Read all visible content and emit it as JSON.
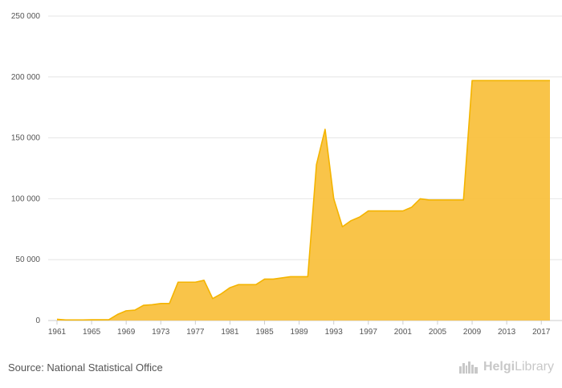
{
  "chart_data": {
    "type": "area",
    "title": "",
    "xlabel": "",
    "ylabel": "",
    "xlim": [
      1961,
      2018
    ],
    "ylim": [
      0,
      250000
    ],
    "y_ticks": [
      0,
      50000,
      100000,
      150000,
      200000,
      250000
    ],
    "y_tick_labels": [
      "0",
      "50 000",
      "100 000",
      "150 000",
      "200 000",
      "250 000"
    ],
    "x_tick_labels": [
      "1961",
      "1965",
      "1969",
      "1973",
      "1977",
      "1981",
      "1985",
      "1989",
      "1993",
      "1997",
      "2001",
      "2005",
      "2009",
      "2013",
      "2017"
    ],
    "grid": true,
    "legend": "none",
    "color": "#f9c13f",
    "line_color": "#f4b400",
    "x": [
      1961,
      1962,
      1963,
      1964,
      1965,
      1966,
      1967,
      1968,
      1969,
      1970,
      1971,
      1972,
      1973,
      1974,
      1975,
      1976,
      1977,
      1978,
      1979,
      1980,
      1981,
      1982,
      1983,
      1984,
      1985,
      1986,
      1987,
      1988,
      1989,
      1990,
      1991,
      1992,
      1993,
      1994,
      1995,
      1996,
      1997,
      1998,
      1999,
      2000,
      2001,
      2002,
      2003,
      2004,
      2005,
      2006,
      2007,
      2008,
      2009,
      2010,
      2011,
      2012,
      2013,
      2014,
      2015,
      2016,
      2017,
      2018
    ],
    "values": [
      1000,
      500,
      500,
      500,
      600,
      600,
      700,
      5000,
      8000,
      8500,
      12500,
      13000,
      14000,
      14000,
      31500,
      31500,
      31500,
      33000,
      18000,
      22000,
      27000,
      29500,
      29500,
      29500,
      34000,
      34000,
      35000,
      36000,
      36000,
      36000,
      128000,
      157000,
      100000,
      77000,
      82000,
      85000,
      90000,
      90000,
      90000,
      90000,
      90000,
      93000,
      100000,
      99000,
      99000,
      99000,
      99000,
      99000,
      197000,
      197000,
      197000,
      197000,
      197000,
      197000,
      197000,
      197000,
      197000,
      197000
    ]
  },
  "footer": {
    "source": "Source: National Statistical Office",
    "brand_strong": "Helgi",
    "brand_rest": "Library",
    "brand_icon": "helgi-skyline-icon"
  }
}
